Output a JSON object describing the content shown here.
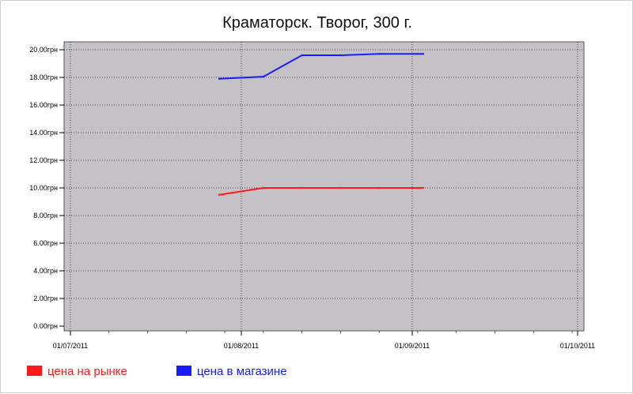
{
  "chart_data": {
    "type": "line",
    "title": "Краматорск. Творог, 300 г.",
    "xlabel": "",
    "ylabel": "",
    "x_ticks": [
      "01/07/2011",
      "01/08/2011",
      "01/09/2011",
      "01/10/2011"
    ],
    "y_ticks": [
      "0.00грн",
      "2.00грн",
      "4.00грн",
      "6.00грн",
      "8.00грн",
      "10.00грн",
      "12.00грн",
      "14.00грн",
      "16.00грн",
      "18.00грн",
      "20.00грн"
    ],
    "ylim": [
      0,
      20
    ],
    "xlim": [
      "2011-07-01",
      "2011-10-01"
    ],
    "grid": true,
    "legend_position": "bottom-left",
    "series": [
      {
        "name": "цена на рынке",
        "color": "#ff1a1a",
        "points": [
          {
            "x": "2011-07-28",
            "y": 9.5
          },
          {
            "x": "2011-08-05",
            "y": 10.0
          },
          {
            "x": "2011-08-12",
            "y": 10.0
          },
          {
            "x": "2011-08-19",
            "y": 10.0
          },
          {
            "x": "2011-08-26",
            "y": 10.0
          },
          {
            "x": "2011-09-03",
            "y": 10.0
          }
        ]
      },
      {
        "name": "цена в магазине",
        "color": "#1a1aff",
        "points": [
          {
            "x": "2011-07-28",
            "y": 17.9
          },
          {
            "x": "2011-08-05",
            "y": 18.05
          },
          {
            "x": "2011-08-12",
            "y": 19.6
          },
          {
            "x": "2011-08-19",
            "y": 19.6
          },
          {
            "x": "2011-08-26",
            "y": 19.7
          },
          {
            "x": "2011-09-03",
            "y": 19.7
          }
        ]
      }
    ]
  }
}
